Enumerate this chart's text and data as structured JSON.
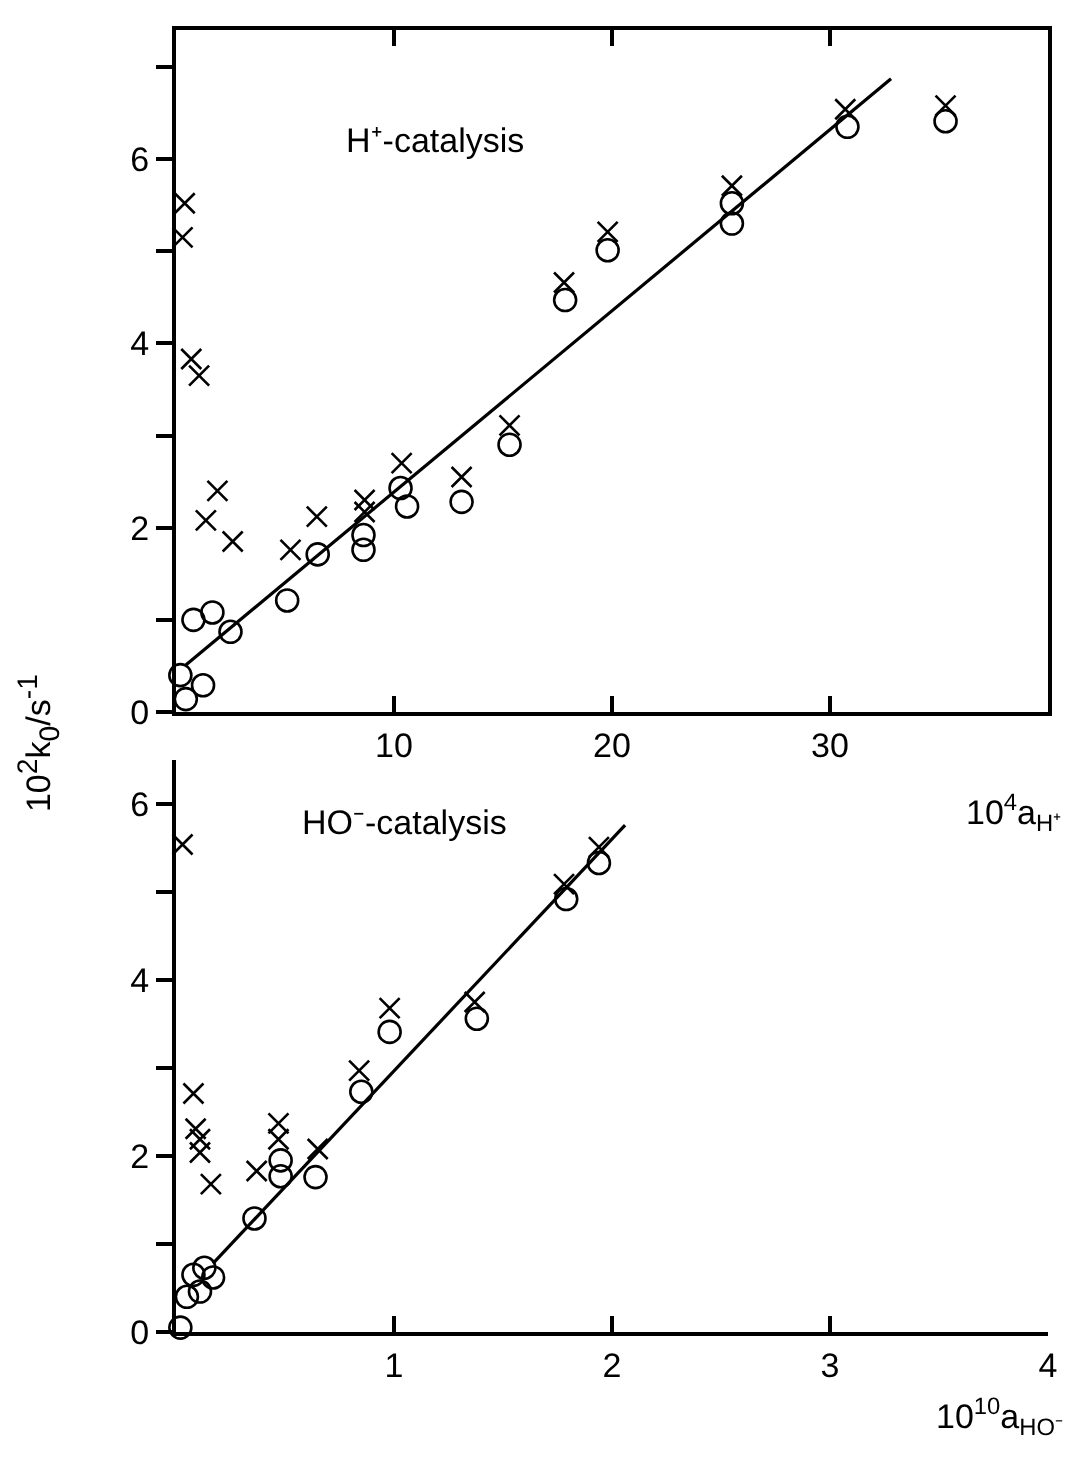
{
  "chart_data": [
    {
      "type": "scatter",
      "ylabel": "10$^{2}$k$_{0}$/s$^{-1}$",
      "xlabel": "10$^{4}$a$_{H⁺}$",
      "annotations": [
        "H⁺-catalysis"
      ],
      "legend": false,
      "xlim": [
        0,
        40
      ],
      "xticks": [
        {
          "value": 0,
          "label": null
        },
        10,
        20,
        30
      ],
      "ylim": [
        0,
        7.4
      ],
      "yticks": [
        0,
        {
          "value": 1,
          "label": null
        },
        2,
        {
          "value": 3,
          "label": null
        },
        4,
        {
          "value": 5,
          "label": null
        },
        6,
        {
          "value": 7,
          "label": null
        }
      ],
      "series": [
        {
          "color": "#000000",
          "marker": "cross",
          "x": [
            0.4,
            0.3,
            0.7,
            1.06,
            1.37,
            1.9,
            2.6,
            5.25,
            6.46,
            8.65,
            8.65,
            10.35,
            13.1,
            15.3,
            17.8,
            19.8,
            25.5,
            30.7,
            35.3
          ],
          "values": [
            5.52,
            5.15,
            3.83,
            3.65,
            2.08,
            2.4,
            1.85,
            1.76,
            2.12,
            2.3,
            2.17,
            2.7,
            2.55,
            3.11,
            4.66,
            5.21,
            5.71,
            6.54,
            6.58
          ]
        },
        {
          "color": "#000000",
          "marker": "circle",
          "x": [
            0.2,
            0.45,
            0.8,
            1.24,
            1.67,
            2.5,
            5.1,
            6.5,
            8.6,
            8.6,
            10.3,
            10.6,
            13.1,
            15.3,
            17.85,
            19.8,
            25.5,
            25.5,
            30.8,
            35.3
          ],
          "values": [
            0.4,
            0.14,
            1.0,
            0.29,
            1.08,
            0.87,
            1.21,
            1.71,
            1.92,
            1.76,
            2.43,
            2.23,
            2.28,
            2.9,
            4.47,
            5.01,
            5.52,
            5.3,
            6.35,
            6.41
          ]
        },
        {
          "type": "line",
          "color": "#000000",
          "marker": "none",
          "x": [
            0.45,
            32.8
          ],
          "values": [
            0.51,
            6.87
          ]
        }
      ]
    },
    {
      "type": "scatter",
      "xlabel": "10$^{10}$a$_{HO⁻}$",
      "annotations": [
        "HO⁻-catalysis"
      ],
      "legend": false,
      "xlim": [
        0,
        4
      ],
      "xticks": [
        {
          "value": 0,
          "label": null
        },
        1,
        2,
        3,
        4
      ],
      "ylim": [
        0,
        6.5
      ],
      "yticks": [
        0,
        {
          "value": 1,
          "label": null
        },
        2,
        {
          "value": 3,
          "label": null
        },
        4,
        {
          "value": 5,
          "label": null
        },
        6
      ],
      "series": [
        {
          "color": "#000000",
          "marker": "cross",
          "x": [
            0.03,
            0.08,
            0.09,
            0.11,
            0.11,
            0.16,
            0.37,
            0.47,
            0.47,
            0.65,
            0.84,
            0.98,
            1.37,
            1.78,
            1.94
          ],
          "values": [
            5.54,
            2.71,
            2.31,
            2.19,
            2.04,
            1.68,
            1.83,
            2.37,
            2.19,
            2.08,
            2.97,
            3.68,
            3.75,
            5.09,
            5.51
          ]
        },
        {
          "color": "#000000",
          "marker": "circle",
          "x": [
            0.02,
            0.05,
            0.08,
            0.11,
            0.13,
            0.17,
            0.36,
            0.48,
            0.48,
            0.64,
            0.85,
            0.98,
            1.38,
            1.79,
            1.94
          ],
          "values": [
            0.05,
            0.4,
            0.65,
            0.46,
            0.73,
            0.62,
            1.29,
            1.95,
            1.77,
            1.76,
            2.73,
            3.41,
            3.56,
            4.92,
            5.33
          ]
        },
        {
          "type": "line",
          "color": "#000000",
          "marker": "none",
          "x": [
            0.17,
            2.06
          ],
          "values": [
            0.78,
            5.76
          ]
        }
      ]
    }
  ]
}
